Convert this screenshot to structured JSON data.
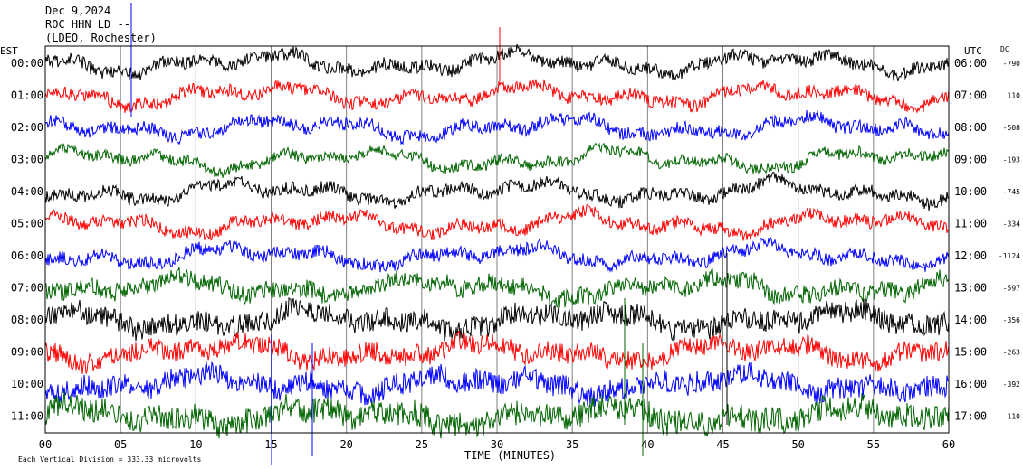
{
  "chart_data": {
    "type": "line",
    "title_lines": [
      "Dec 9,2024",
      "ROC HHN LD --",
      "(LDEO, Rochester)"
    ],
    "left_axis_label": "EST",
    "right_axis_label": "UTC",
    "dc_label": "DC",
    "xlabel": "TIME (MINUTES)",
    "x_ticks": [
      "00",
      "05",
      "10",
      "15",
      "20",
      "25",
      "30",
      "35",
      "40",
      "45",
      "50",
      "55",
      "60"
    ],
    "xlim": [
      0,
      60
    ],
    "scale_note": "Each Vertical Division =  333.33 microvolts",
    "colors": [
      "#000000",
      "#ff0000",
      "#0000ff",
      "#006400"
    ],
    "grid": "vertical lines every 5 minutes",
    "rows": [
      {
        "est": "00:00",
        "utc": "06:00",
        "dc": "-790"
      },
      {
        "est": "01:00",
        "utc": "07:00",
        "dc": "110"
      },
      {
        "est": "02:00",
        "utc": "08:00",
        "dc": "-508"
      },
      {
        "est": "03:00",
        "utc": "09:00",
        "dc": "-193"
      },
      {
        "est": "04:00",
        "utc": "10:00",
        "dc": "-745"
      },
      {
        "est": "05:00",
        "utc": "11:00",
        "dc": "-334"
      },
      {
        "est": "06:00",
        "utc": "12:00",
        "dc": "-1124"
      },
      {
        "est": "07:00",
        "utc": "13:00",
        "dc": "-597"
      },
      {
        "est": "08:00",
        "utc": "14:00",
        "dc": "-356"
      },
      {
        "est": "09:00",
        "utc": "15:00",
        "dc": "-263"
      },
      {
        "est": "10:00",
        "utc": "16:00",
        "dc": "-392"
      },
      {
        "est": "11:00",
        "utc": "17:00",
        "dc": "110"
      }
    ]
  }
}
